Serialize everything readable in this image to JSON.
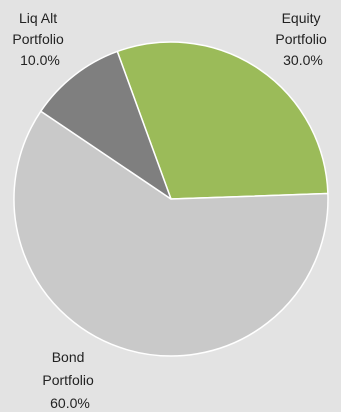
{
  "chart_data": {
    "type": "pie",
    "start_angle_deg": -20,
    "direction": "clockwise",
    "slices": [
      {
        "label": [
          "Equity",
          "Portfolio",
          "30.0%"
        ],
        "value": 30.0,
        "color": "#9bbb59"
      },
      {
        "label": [
          "Bond",
          "Portfolio",
          "60.0%"
        ],
        "value": 60.0,
        "color": "#c9c9c9"
      },
      {
        "label": [
          "Liq Alt",
          "Portfolio",
          "10.0%"
        ],
        "value": 10.0,
        "color": "#7f7f7f"
      }
    ],
    "slice_border_color": "#ffffff",
    "background_color": "#e3e3e3",
    "legend": "none",
    "title": ""
  }
}
